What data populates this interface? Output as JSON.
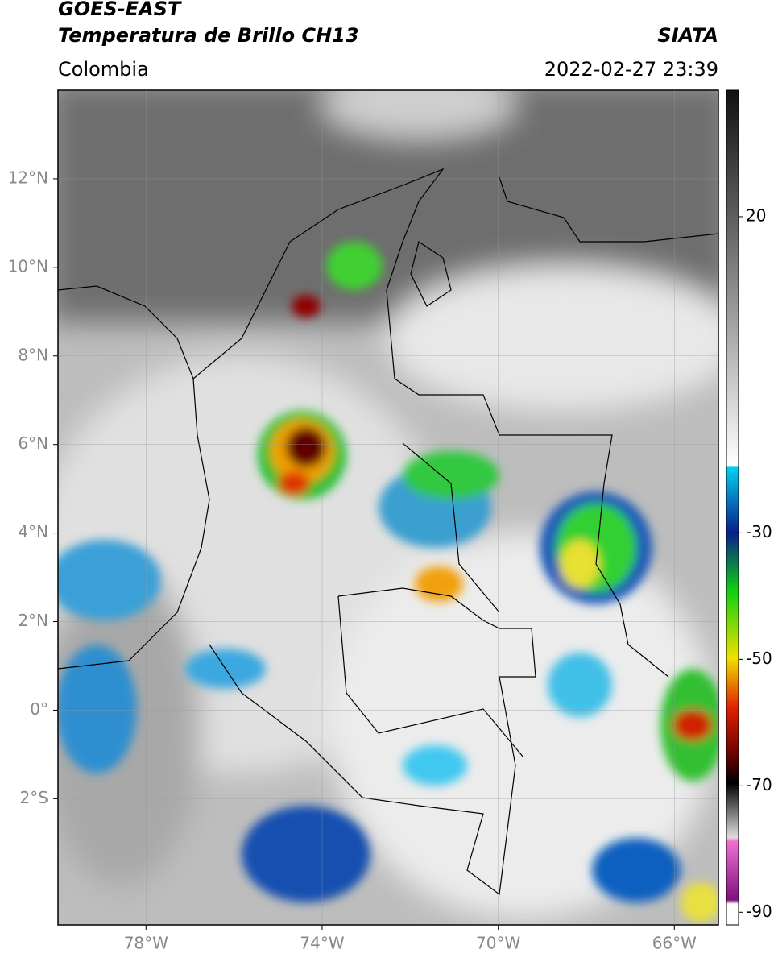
{
  "header": {
    "title_line1": "GOES-EAST",
    "title_line2": "Temperatura de Brillo CH13",
    "region": "Colombia",
    "source": "SIATA",
    "datetime": "2022-02-27 23:39"
  },
  "map": {
    "lonlim": [
      -80,
      -65
    ],
    "latlim": [
      -4.85,
      14
    ],
    "grid": true,
    "lon_ticks": [
      {
        "value": -78,
        "label": "78°W"
      },
      {
        "value": -74,
        "label": "74°W"
      },
      {
        "value": -70,
        "label": "70°W"
      },
      {
        "value": -66,
        "label": "66°W"
      }
    ],
    "lat_ticks": [
      {
        "value": 12,
        "label": "12°N"
      },
      {
        "value": 10,
        "label": "10°N"
      },
      {
        "value": 8,
        "label": "8°N"
      },
      {
        "value": 6,
        "label": "6°N"
      },
      {
        "value": 4,
        "label": "4°N"
      },
      {
        "value": 2,
        "label": "2°N"
      },
      {
        "value": 0,
        "label": "0°"
      },
      {
        "value": -2,
        "label": "2°S"
      }
    ]
  },
  "colorbar": {
    "lim": [
      -92,
      40
    ],
    "ticks": [
      20,
      -30,
      -50,
      -70,
      -90
    ]
  }
}
